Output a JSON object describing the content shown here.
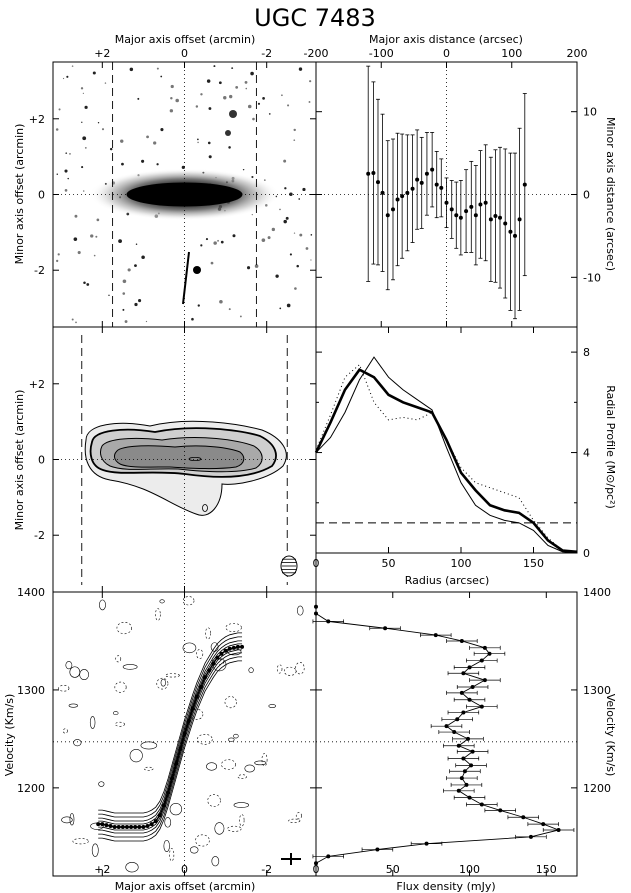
{
  "figure_title": "UGC 7483",
  "chart_data": [
    {
      "id": "optical",
      "type": "heatmap",
      "xlabel_top": "Major axis offset (arcmin)",
      "ylabel": "Minor axis offset (arcmin)",
      "xlim": [
        3.2,
        -3.2
      ],
      "ylim": [
        -3.5,
        3.5
      ],
      "xticks": [
        "+2",
        "0",
        "-2"
      ],
      "yticks": [
        "+2",
        "0",
        "-2"
      ],
      "dashed_vlines": [
        1.75,
        -1.75
      ]
    },
    {
      "id": "centers",
      "type": "scatter",
      "xlabel_top": "Major axis distance (arcsec)",
      "ylabel_right": "Minor axis distance (arcsec)",
      "xlim": [
        -200,
        200
      ],
      "ylim": [
        -16,
        16
      ],
      "xticks": [
        "-200",
        "-100",
        "0",
        "100",
        "200"
      ],
      "yticks": [
        "10",
        "0",
        "-10"
      ],
      "x": [
        -120,
        -112,
        -105,
        -98,
        -90,
        -82,
        -75,
        -68,
        -60,
        -52,
        -45,
        -38,
        -30,
        -22,
        -15,
        -8,
        0,
        8,
        15,
        22,
        30,
        38,
        45,
        52,
        60,
        68,
        75,
        82,
        90,
        98,
        105,
        112,
        120
      ],
      "y": [
        2.5,
        2.6,
        1.5,
        0.2,
        -2.5,
        -1.8,
        -0.6,
        -0.2,
        0.2,
        0.7,
        1.8,
        1.4,
        2.5,
        3.0,
        1.2,
        0.8,
        -1.0,
        -1.8,
        -2.5,
        -2.8,
        -2.0,
        -1.5,
        -2.5,
        -1.2,
        -1.0,
        -3.0,
        -2.6,
        -2.8,
        -3.5,
        -4.5,
        -5.0,
        -3.0,
        1.2
      ],
      "err": [
        13,
        11,
        10,
        9.5,
        9,
        8.5,
        8,
        7.5,
        7,
        6.5,
        6,
        5.5,
        5,
        4.5,
        4,
        3.5,
        3,
        3.5,
        4,
        4.5,
        5,
        5.5,
        6,
        6.5,
        7,
        7.5,
        8,
        8.5,
        9,
        9.5,
        10,
        11,
        11
      ]
    },
    {
      "id": "hi_map",
      "type": "heatmap",
      "ylabel": "Minor axis offset (arcmin)",
      "xlim": [
        3.2,
        -3.2
      ],
      "ylim": [
        -3.5,
        3.5
      ],
      "xticks": [
        "+2",
        "0",
        "-2"
      ],
      "yticks": [
        "+2",
        "0",
        "-2"
      ],
      "dashed_vlines": [
        2.5,
        -2.5
      ]
    },
    {
      "id": "radial_profile",
      "type": "line",
      "xlabel": "Radius (arcsec)",
      "ylabel_right": "Radial Profile (M⊙/pc²)",
      "xlim": [
        0,
        180
      ],
      "ylim": [
        0,
        9
      ],
      "xticks": [
        "0",
        "50",
        "100",
        "150"
      ],
      "yticks": [
        "0",
        "4",
        "8"
      ],
      "dashed_hline": 1.2,
      "series": [
        {
          "style": "thick",
          "x": [
            0,
            10,
            20,
            30,
            40,
            50,
            60,
            70,
            80,
            90,
            100,
            110,
            120,
            130,
            140,
            150,
            160,
            170,
            180
          ],
          "y": [
            4.0,
            5.2,
            6.5,
            7.3,
            7.0,
            6.3,
            6.0,
            5.8,
            5.6,
            4.5,
            3.2,
            2.5,
            1.9,
            1.7,
            1.6,
            1.2,
            0.5,
            0.1,
            0.05
          ]
        },
        {
          "style": "thin",
          "x": [
            0,
            10,
            20,
            30,
            40,
            50,
            60,
            70,
            80,
            90,
            100,
            110,
            120,
            130,
            140,
            150,
            160,
            170,
            180
          ],
          "y": [
            4.0,
            4.6,
            5.6,
            6.9,
            7.8,
            7.0,
            6.5,
            6.1,
            5.7,
            4.2,
            2.8,
            1.9,
            1.5,
            1.3,
            1.2,
            0.9,
            0.3,
            0.05,
            0.0
          ]
        },
        {
          "style": "dotted",
          "x": [
            0,
            10,
            20,
            30,
            40,
            50,
            60,
            70,
            80,
            90,
            100,
            110,
            120,
            130,
            140,
            150,
            160,
            170,
            180
          ],
          "y": [
            4.1,
            5.5,
            7.0,
            7.5,
            6.0,
            5.3,
            5.4,
            5.3,
            5.6,
            4.5,
            3.4,
            2.8,
            2.6,
            2.4,
            2.2,
            1.3,
            0.6,
            0.1,
            0.05
          ]
        }
      ]
    },
    {
      "id": "pv_diagram",
      "type": "scatter",
      "xlabel": "Major axis offset (arcmin)",
      "ylabel": "Velocity (Km/s)",
      "xlim": [
        3.2,
        -3.2
      ],
      "ylim": [
        1110,
        1400
      ],
      "xticks": [
        "+2",
        "0",
        "-2"
      ],
      "yticks": [
        "1400",
        "1300",
        "1200"
      ],
      "systemic_velocity": 1247,
      "rotation_curve": {
        "x": [
          2.1,
          2.0,
          1.9,
          1.8,
          1.7,
          1.6,
          1.5,
          1.4,
          1.3,
          1.2,
          1.1,
          1.0,
          0.9,
          0.8,
          0.7,
          0.6,
          0.5,
          0.4,
          0.3,
          0.2,
          0.1,
          0.0,
          -0.1,
          -0.2,
          -0.3,
          -0.4,
          -0.5,
          -0.6,
          -0.7,
          -0.8,
          -0.9,
          -1.0,
          -1.1,
          -1.2,
          -1.3,
          -1.4
        ],
        "y": [
          1163,
          1163,
          1162,
          1161,
          1160,
          1160,
          1160,
          1160,
          1160,
          1160,
          1160,
          1160,
          1161,
          1163,
          1166,
          1172,
          1182,
          1195,
          1210,
          1225,
          1240,
          1255,
          1268,
          1281,
          1293,
          1303,
          1313,
          1320,
          1327,
          1333,
          1337,
          1340,
          1342,
          1343,
          1344,
          1344
        ]
      }
    },
    {
      "id": "global_profile",
      "type": "line",
      "xlabel": "Flux density (mJy)",
      "ylabel_right": "Velocity (Km/s)",
      "xlim": [
        0,
        170
      ],
      "ylim": [
        1110,
        1400
      ],
      "xticks": [
        "0",
        "50",
        "100",
        "150"
      ],
      "yticks": [
        "1400",
        "1300",
        "1200"
      ],
      "systemic_velocity": 1247,
      "velocity": [
        1385,
        1378,
        1370,
        1363,
        1356,
        1350,
        1343,
        1337,
        1330,
        1323,
        1317,
        1310,
        1303,
        1297,
        1290,
        1283,
        1277,
        1270,
        1263,
        1257,
        1250,
        1243,
        1237,
        1230,
        1223,
        1217,
        1210,
        1203,
        1197,
        1190,
        1183,
        1177,
        1170,
        1163,
        1157,
        1150,
        1143,
        1137,
        1130,
        1123
      ],
      "flux": [
        0,
        0,
        8,
        45,
        78,
        95,
        110,
        113,
        108,
        100,
        96,
        110,
        102,
        95,
        100,
        108,
        96,
        92,
        85,
        90,
        99,
        93,
        102,
        96,
        101,
        97,
        95,
        98,
        93,
        100,
        108,
        120,
        135,
        148,
        158,
        140,
        72,
        40,
        8,
        0
      ],
      "flux_err": 10
    }
  ]
}
